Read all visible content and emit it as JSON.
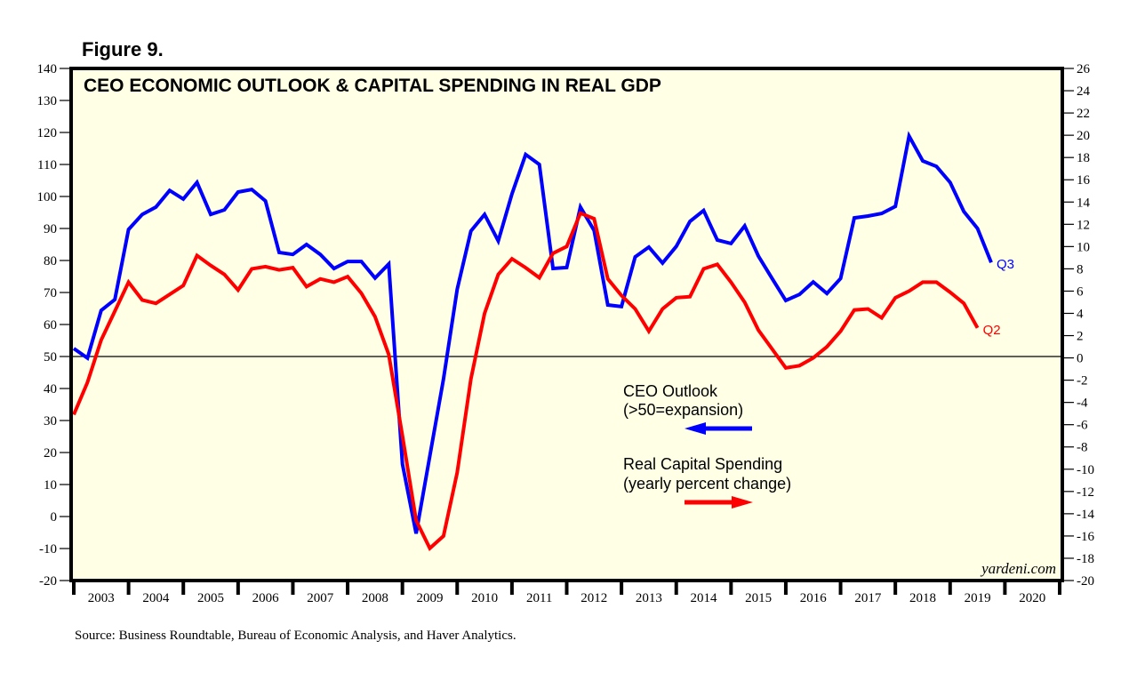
{
  "figure_label": "Figure 9.",
  "source": "Source: Business Roundtable, Bureau of Economic Analysis, and Haver Analytics.",
  "credit": "yardeni.com",
  "chart_data": {
    "type": "line",
    "title": "CEO ECONOMIC OUTLOOK & CAPITAL SPENDING IN REAL GDP",
    "xlabel": "",
    "x_unit": "quarter",
    "x_start": "2002Q4",
    "x_range": [
      2003,
      2021
    ],
    "x_tick_labels": [
      "2003",
      "2004",
      "2005",
      "2006",
      "2007",
      "2008",
      "2009",
      "2010",
      "2011",
      "2012",
      "2013",
      "2014",
      "2015",
      "2016",
      "2017",
      "2018",
      "2019",
      "2020"
    ],
    "y_left": {
      "label": "CEO Outlook",
      "ylim": [
        -20,
        140
      ],
      "ticks": [
        140,
        130,
        120,
        110,
        100,
        90,
        80,
        70,
        60,
        50,
        40,
        30,
        20,
        10,
        0,
        -10,
        -20
      ]
    },
    "y_right": {
      "label": "Real Capital Spending",
      "ylim": [
        -20,
        26
      ],
      "ticks": [
        26,
        24,
        22,
        20,
        18,
        16,
        14,
        12,
        10,
        8,
        6,
        4,
        2,
        0,
        -2,
        -4,
        -6,
        -8,
        -10,
        -12,
        -14,
        -16,
        -18,
        -20
      ]
    },
    "reference_line": {
      "axis": "left",
      "value": 50
    },
    "grid": false,
    "series": [
      {
        "name": "CEO Outlook",
        "legend_lines": [
          "CEO Outlook",
          "(>50=expansion)"
        ],
        "axis": "left",
        "arrow": "left",
        "color": "#0000ff",
        "start": "2002Q4",
        "end_label": "Q3",
        "values": [
          52.5,
          49.5,
          64.4,
          67.8,
          89.7,
          94.4,
          96.7,
          101.9,
          99.2,
          104.4,
          94.4,
          95.8,
          101.4,
          102.2,
          98.6,
          82.5,
          81.9,
          85.0,
          81.9,
          77.5,
          79.7,
          79.7,
          74.5,
          78.9,
          16.4,
          -5.3,
          18.9,
          43.0,
          71.0,
          89.2,
          94.4,
          86.1,
          100.8,
          113.1,
          110.0,
          77.5,
          77.8,
          96.7,
          89.4,
          66.1,
          65.6,
          81.1,
          84.2,
          79.2,
          84.4,
          92.2,
          95.6,
          86.4,
          85.3,
          90.8,
          81.4,
          74.4,
          67.5,
          69.4,
          73.3,
          69.7,
          74.4,
          93.3,
          93.9,
          94.7,
          96.9,
          118.9,
          111.1,
          109.4,
          104.4,
          95.3,
          90.0,
          79.4
        ]
      },
      {
        "name": "Real Capital Spending",
        "legend_lines": [
          "Real Capital Spending",
          "(yearly percent change)"
        ],
        "axis": "right",
        "arrow": "right",
        "color": "#ff0000",
        "start": "2002Q4",
        "end_label": "Q2",
        "values": [
          -5.1,
          -2.2,
          1.6,
          4.2,
          6.8,
          5.2,
          4.9,
          5.7,
          6.5,
          9.2,
          8.3,
          7.5,
          6.1,
          8.0,
          8.2,
          7.9,
          8.1,
          6.4,
          7.1,
          6.8,
          7.3,
          5.8,
          3.7,
          0.3,
          -7.0,
          -14.6,
          -17.1,
          -16.0,
          -10.3,
          -1.9,
          4.0,
          7.5,
          8.9,
          8.1,
          7.2,
          9.4,
          10.0,
          13.0,
          12.5,
          7.1,
          5.6,
          4.4,
          2.4,
          4.4,
          5.4,
          5.5,
          8.0,
          8.4,
          6.8,
          5.0,
          2.5,
          0.8,
          -0.9,
          -0.7,
          0.0,
          1.0,
          2.4,
          4.3,
          4.4,
          3.6,
          5.4,
          6.0,
          6.8,
          6.8,
          5.9,
          4.9,
          2.7
        ]
      }
    ]
  }
}
